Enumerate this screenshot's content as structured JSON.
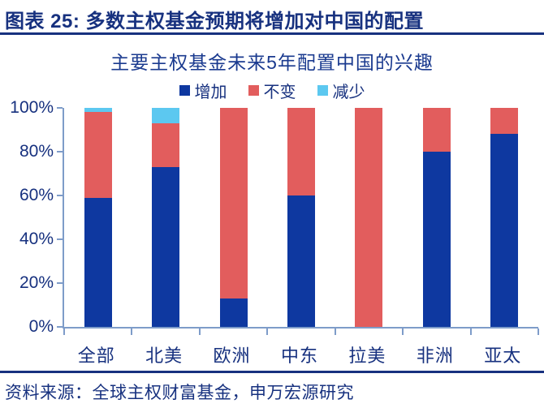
{
  "header": {
    "title": "图表 25: 多数主权基金预期将增加对中国的配置"
  },
  "chart_data": {
    "type": "bar",
    "stacked": true,
    "title": "主要主权基金未来5年配置中国的兴趣",
    "categories": [
      "全部",
      "北美",
      "欧洲",
      "中东",
      "拉美",
      "非洲",
      "亚太"
    ],
    "series": [
      {
        "key": "increase",
        "name": "增加",
        "color": "#0E38A0",
        "values": [
          59,
          73,
          13,
          60,
          0,
          80,
          88
        ]
      },
      {
        "key": "unchanged",
        "name": "不变",
        "color": "#E25D5D",
        "values": [
          39,
          20,
          87,
          40,
          100,
          20,
          12
        ]
      },
      {
        "key": "decrease",
        "name": "减少",
        "color": "#5CC8F0",
        "values": [
          2,
          7,
          0,
          0,
          0,
          0,
          0
        ]
      }
    ],
    "ylim": [
      0,
      100
    ],
    "yticks": [
      {
        "value": 0,
        "label": "0%"
      },
      {
        "value": 20,
        "label": "20%"
      },
      {
        "value": 40,
        "label": "40%"
      },
      {
        "value": 60,
        "label": "60%"
      },
      {
        "value": 80,
        "label": "80%"
      },
      {
        "value": 100,
        "label": "100%"
      }
    ],
    "grid": false,
    "legend_position": "top-center"
  },
  "footer": {
    "source": "资料来源：全球主权财富基金，申万宏源研究"
  },
  "colors": {
    "heading_text": "#17317F",
    "title_text": "#1A3A8F",
    "axis_line": "#7E9CC9",
    "increase": "#0E38A0",
    "unchanged": "#E25D5D",
    "decrease": "#5CC8F0"
  }
}
